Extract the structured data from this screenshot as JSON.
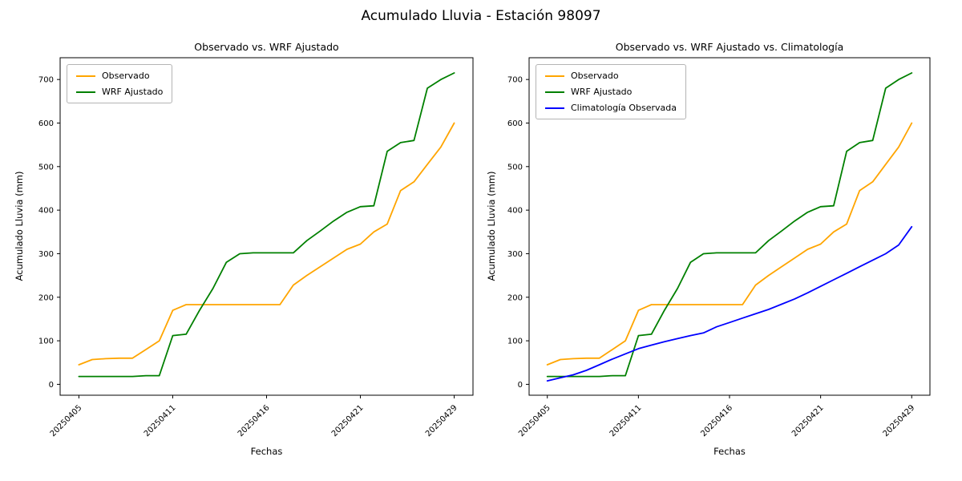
{
  "figure": {
    "suptitle": "Acumulado Lluvia - Estación 98097",
    "background_color": "#ffffff"
  },
  "chart_data": [
    {
      "type": "line",
      "title": "Observado vs. WRF Ajustado",
      "xlabel": "Fechas",
      "ylabel": "Acumulado Lluvia (mm)",
      "ylim": [
        -25,
        750
      ],
      "yticks": [
        0,
        100,
        200,
        300,
        400,
        500,
        600,
        700
      ],
      "xticklabels": [
        "20250405",
        "20250411",
        "20250416",
        "20250421",
        "20250429"
      ],
      "xtick_indices": [
        0,
        7,
        14,
        21,
        28
      ],
      "grid": false,
      "legend_position": "upper-left",
      "series": [
        {
          "name": "Observado",
          "color": "#FFA500",
          "values": [
            45,
            57,
            59,
            60,
            60,
            80,
            100,
            170,
            183,
            183,
            183,
            183,
            183,
            183,
            183,
            183,
            228,
            250,
            270,
            290,
            310,
            322,
            350,
            368,
            445,
            465,
            505,
            545,
            600
          ]
        },
        {
          "name": "WRF Ajustado",
          "color": "#008000",
          "values": [
            18,
            18,
            18,
            18,
            18,
            20,
            20,
            112,
            115,
            170,
            220,
            280,
            300,
            302,
            302,
            302,
            302,
            330,
            352,
            375,
            395,
            408,
            410,
            535,
            555,
            560,
            680,
            700,
            715
          ]
        }
      ]
    },
    {
      "type": "line",
      "title": "Observado vs. WRF Ajustado vs. Climatología",
      "xlabel": "Fechas",
      "ylabel": "Acumulado Lluvia (mm)",
      "ylim": [
        -25,
        750
      ],
      "yticks": [
        0,
        100,
        200,
        300,
        400,
        500,
        600,
        700
      ],
      "xticklabels": [
        "20250405",
        "20250411",
        "20250416",
        "20250421",
        "20250429"
      ],
      "xtick_indices": [
        0,
        7,
        14,
        21,
        28
      ],
      "grid": false,
      "legend_position": "upper-left",
      "series": [
        {
          "name": "Observado",
          "color": "#FFA500",
          "values": [
            45,
            57,
            59,
            60,
            60,
            80,
            100,
            170,
            183,
            183,
            183,
            183,
            183,
            183,
            183,
            183,
            228,
            250,
            270,
            290,
            310,
            322,
            350,
            368,
            445,
            465,
            505,
            545,
            600
          ]
        },
        {
          "name": "WRF Ajustado",
          "color": "#008000",
          "values": [
            18,
            18,
            18,
            18,
            18,
            20,
            20,
            112,
            115,
            170,
            220,
            280,
            300,
            302,
            302,
            302,
            302,
            330,
            352,
            375,
            395,
            408,
            410,
            535,
            555,
            560,
            680,
            700,
            715
          ]
        },
        {
          "name": "Climatología Observada",
          "color": "#0000FF",
          "values": [
            8,
            15,
            22,
            32,
            45,
            58,
            70,
            82,
            90,
            98,
            105,
            112,
            118,
            132,
            142,
            152,
            162,
            172,
            184,
            196,
            210,
            225,
            240,
            255,
            270,
            285,
            300,
            320,
            362
          ]
        }
      ]
    }
  ]
}
